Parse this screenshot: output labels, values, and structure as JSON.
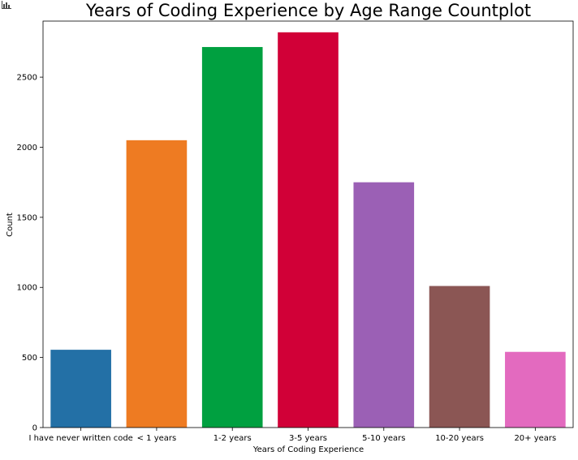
{
  "toolbar": {
    "icon": "bar-chart-icon"
  },
  "chart_data": {
    "type": "bar",
    "title": "Years of Coding Experience by Age Range Countplot",
    "xlabel": "Years of Coding Experience",
    "ylabel": "Count",
    "categories": [
      "I have never written code",
      "< 1 years",
      "1-2 years",
      "3-5 years",
      "5-10 years",
      "10-20 years",
      "20+ years"
    ],
    "values": [
      555,
      2050,
      2715,
      2820,
      1750,
      1010,
      540
    ],
    "colors": [
      "#2370a6",
      "#ee7b22",
      "#00a040",
      "#d10037",
      "#9b60b5",
      "#8b5654",
      "#e36abf"
    ],
    "ylim": [
      0,
      2900
    ],
    "yticks": [
      0,
      500,
      1000,
      1500,
      2000,
      2500
    ],
    "grid": false,
    "legend": "none"
  }
}
